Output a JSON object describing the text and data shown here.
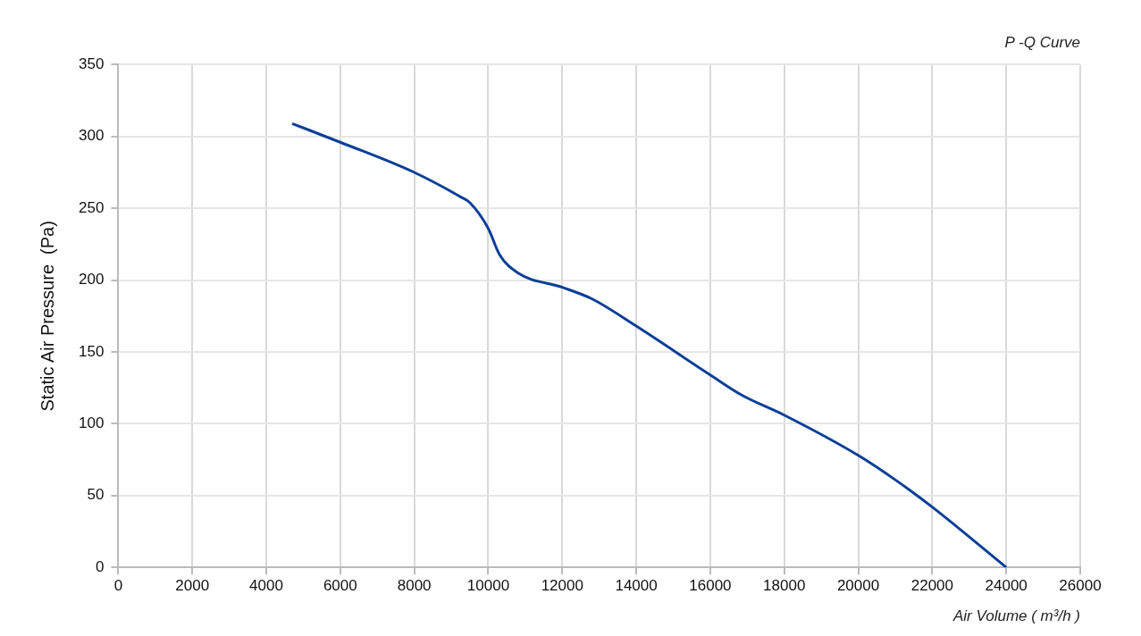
{
  "chart_data": {
    "type": "line",
    "title": "P -Q Curve",
    "xlabel": "Air Volume ( m³/h )",
    "ylabel": "Static Air Pressure  (Pa)",
    "x": [
      4700,
      6000,
      8000,
      9250,
      9500,
      10000,
      10300,
      10800,
      12000,
      12800,
      14000,
      16000,
      16850,
      18000,
      20000,
      21000,
      22000,
      24000
    ],
    "series": [
      {
        "color": "#0a3f96",
        "values": [
          309,
          296,
          275,
          258,
          254,
          236,
          218,
          205,
          195,
          187,
          168,
          134,
          120,
          106,
          78,
          61,
          42,
          0
        ]
      }
    ],
    "xlim": [
      0,
      26000
    ],
    "xticks": [
      0,
      2000,
      4000,
      6000,
      8000,
      10000,
      12000,
      14000,
      16000,
      18000,
      20000,
      22000,
      24000,
      26000
    ],
    "ylim": [
      0,
      350
    ],
    "yticks": [
      0,
      50,
      100,
      150,
      200,
      250,
      300,
      350
    ],
    "grid": true,
    "legend": false,
    "marker": "none",
    "line_style": "solid"
  }
}
